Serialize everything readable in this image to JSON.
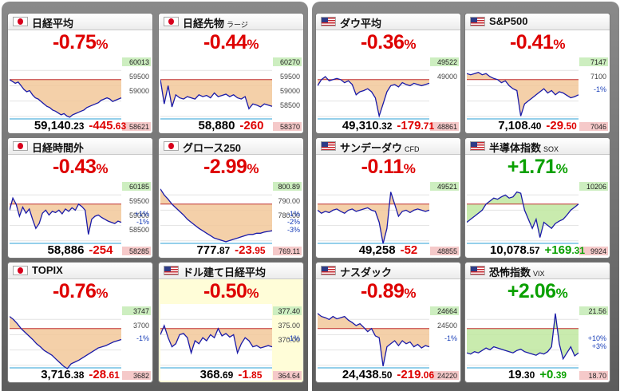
{
  "tiles": [
    {
      "name": "日経平均",
      "suffix": "",
      "flag": "jp",
      "change_pct": "-0.75",
      "pct_unit": "%",
      "price_int": "59,140",
      "price_dec": ".23",
      "change_int": "-445",
      "change_dec": ".63",
      "high": "60013",
      "low": "58621",
      "ticks": [
        "59500",
        "59000"
      ],
      "refs": [],
      "dir": "neg",
      "line": [
        0.3,
        0.33,
        0.36,
        0.34,
        0.4,
        0.46,
        0.5,
        0.48,
        0.55,
        0.6,
        0.62,
        0.66,
        0.7,
        0.74,
        0.76,
        0.8,
        0.82,
        0.85,
        0.88,
        0.86,
        0.9,
        0.92,
        0.88,
        0.86,
        0.84,
        0.82,
        0.8,
        0.76,
        0.74,
        0.72,
        0.7,
        0.68,
        0.64,
        0.62,
        0.6,
        0.62,
        0.66,
        0.64,
        0.62,
        0.6
      ]
    },
    {
      "name": "日経時間外",
      "suffix": "",
      "flag": "jp",
      "change_pct": "-0.43",
      "pct_unit": "%",
      "price_int": "58,886",
      "price_dec": "",
      "change_int": "-254",
      "change_dec": "",
      "high": "60185",
      "low": "58285",
      "ticks": [
        "59500",
        "59000",
        "58500"
      ],
      "refs": [
        "+1%",
        "-1%"
      ],
      "dir": "neg",
      "line": [
        0.4,
        0.2,
        0.3,
        0.5,
        0.35,
        0.45,
        0.38,
        0.55,
        0.7,
        0.62,
        0.45,
        0.4,
        0.48,
        0.42,
        0.44,
        0.4,
        0.46,
        0.38,
        0.42,
        0.36,
        0.4,
        0.3,
        0.34,
        0.4,
        0.8,
        0.55,
        0.5,
        0.48,
        0.52,
        0.55,
        0.58,
        0.6,
        0.62,
        0.58,
        0.6
      ]
    },
    {
      "name": "TOPIX",
      "suffix": "",
      "flag": "jp",
      "change_pct": "-0.76",
      "pct_unit": "%",
      "price_int": "3,716",
      "price_dec": ".38",
      "change_int": "-28",
      "change_dec": ".61",
      "high": "3747",
      "low": "3682",
      "ticks": [
        "3700"
      ],
      "refs": [
        "-1%"
      ],
      "dir": "neg",
      "line": [
        0.1,
        0.15,
        0.22,
        0.3,
        0.36,
        0.42,
        0.48,
        0.55,
        0.6,
        0.66,
        0.7,
        0.74,
        0.8,
        0.86,
        0.92,
        0.96,
        0.88,
        0.85,
        0.82,
        0.78,
        0.74,
        0.7,
        0.66,
        0.62,
        0.6,
        0.58,
        0.55,
        0.52,
        0.5,
        0.48
      ]
    },
    {
      "name": "日経先物",
      "suffix": "ラージ",
      "flag": "jp",
      "change_pct": "-0.44",
      "pct_unit": "%",
      "price_int": "58,880",
      "price_dec": "",
      "change_int": "-260",
      "change_dec": "",
      "high": "60270",
      "low": "58370",
      "ticks": [
        "59500",
        "59000",
        "58500"
      ],
      "refs": [],
      "dir": "neg",
      "line": [
        0.3,
        0.7,
        0.4,
        0.75,
        0.55,
        0.6,
        0.62,
        0.58,
        0.6,
        0.62,
        0.55,
        0.58,
        0.56,
        0.6,
        0.52,
        0.58,
        0.56,
        0.54,
        0.58,
        0.55,
        0.6,
        0.62,
        0.58,
        0.78,
        0.7,
        0.72,
        0.75,
        0.7,
        0.72,
        0.74
      ]
    },
    {
      "name": "グロース250",
      "suffix": "",
      "flag": "jp",
      "change_pct": "-2.99",
      "pct_unit": "%",
      "price_int": "777",
      "price_dec": ".87",
      "change_int": "-23",
      "change_dec": ".95",
      "high": "800.89",
      "low": "769.11",
      "ticks": [
        "790.00",
        "780.00"
      ],
      "refs": [
        "-1%",
        "-2%",
        "-3%"
      ],
      "dir": "neg",
      "line": [
        0.05,
        0.15,
        0.22,
        0.3,
        0.36,
        0.42,
        0.48,
        0.55,
        0.6,
        0.65,
        0.7,
        0.74,
        0.78,
        0.82,
        0.86,
        0.88,
        0.9,
        0.92,
        0.9,
        0.88,
        0.86,
        0.84,
        0.82,
        0.8,
        0.8,
        0.78,
        0.78,
        0.76,
        0.75,
        0.74
      ]
    },
    {
      "name": "ドル建て日経平均",
      "suffix": "",
      "flag": "us",
      "change_pct": "-0.50",
      "pct_unit": "%",
      "price_int": "368",
      "price_dec": ".69",
      "change_int": "-1",
      "change_dec": ".85",
      "high": "377.40",
      "low": "364.64",
      "ticks": [
        "375.00",
        "370.00"
      ],
      "refs": [
        "-1%"
      ],
      "dir": "neg",
      "highlight": true,
      "line": [
        0.4,
        0.25,
        0.45,
        0.6,
        0.55,
        0.4,
        0.38,
        0.45,
        0.7,
        0.5,
        0.55,
        0.45,
        0.5,
        0.4,
        0.45,
        0.3,
        0.42,
        0.38,
        0.44,
        0.4,
        0.7,
        0.55,
        0.45,
        0.5,
        0.6,
        0.58,
        0.62,
        0.6,
        0.58,
        0.6
      ]
    },
    {
      "name": "ダウ平均",
      "suffix": "",
      "flag": "us",
      "change_pct": "-0.36",
      "pct_unit": "%",
      "price_int": "49,310",
      "price_dec": ".32",
      "change_int": "-179",
      "change_dec": ".71",
      "high": "49522",
      "low": "48861",
      "ticks": [
        "49000"
      ],
      "refs": [],
      "dir": "neg",
      "line": [
        0.4,
        0.3,
        0.25,
        0.32,
        0.3,
        0.28,
        0.3,
        0.35,
        0.32,
        0.38,
        0.55,
        0.5,
        0.48,
        0.45,
        0.5,
        0.6,
        0.9,
        0.7,
        0.5,
        0.4,
        0.38,
        0.42,
        0.35,
        0.38,
        0.4,
        0.36,
        0.38,
        0.4,
        0.38,
        0.36
      ]
    },
    {
      "name": "サンデーダウ",
      "suffix": "CFD",
      "flag": "us",
      "change_pct": "-0.11",
      "pct_unit": "%",
      "price_int": "49,258",
      "price_dec": "",
      "change_int": "-52",
      "change_dec": "",
      "high": "49521",
      "low": "48855",
      "ticks": [],
      "refs": [],
      "dir": "neg",
      "line": [
        0.4,
        0.45,
        0.42,
        0.44,
        0.4,
        0.38,
        0.42,
        0.45,
        0.4,
        0.38,
        0.42,
        0.4,
        0.38,
        0.36,
        0.4,
        0.42,
        0.6,
        0.95,
        0.7,
        0.1,
        0.3,
        0.5,
        0.42,
        0.4,
        0.44,
        0.4,
        0.38,
        0.4,
        0.42,
        0.4
      ]
    },
    {
      "name": "ナスダック",
      "suffix": "",
      "flag": "us",
      "change_pct": "-0.89",
      "pct_unit": "%",
      "price_int": "24,438",
      "price_dec": ".50",
      "change_int": "-219",
      "change_dec": ".06",
      "high": "24664",
      "low": "24220",
      "ticks": [
        "24500"
      ],
      "refs": [
        "-1%"
      ],
      "dir": "neg",
      "line": [
        0.05,
        0.1,
        0.12,
        0.15,
        0.1,
        0.14,
        0.12,
        0.1,
        0.16,
        0.2,
        0.25,
        0.22,
        0.28,
        0.35,
        0.3,
        0.42,
        0.45,
        0.92,
        0.6,
        0.55,
        0.5,
        0.58,
        0.5,
        0.55,
        0.52,
        0.6,
        0.56,
        0.62,
        0.58,
        0.6
      ]
    },
    {
      "name": "S&P500",
      "suffix": "",
      "flag": "us",
      "change_pct": "-0.41",
      "pct_unit": "%",
      "price_int": "7,108",
      "price_dec": ".40",
      "change_int": "-29",
      "change_dec": ".50",
      "high": "7147",
      "low": "7046",
      "ticks": [
        "7100"
      ],
      "refs": [
        "-1%"
      ],
      "dir": "neg",
      "line": [
        0.2,
        0.22,
        0.2,
        0.18,
        0.22,
        0.2,
        0.25,
        0.28,
        0.3,
        0.35,
        0.32,
        0.4,
        0.45,
        0.48,
        0.9,
        0.7,
        0.65,
        0.6,
        0.55,
        0.5,
        0.45,
        0.52,
        0.48,
        0.55,
        0.5,
        0.52,
        0.56,
        0.6,
        0.58,
        0.55
      ]
    },
    {
      "name": "半導体指数",
      "suffix": "SOX",
      "flag": "us",
      "change_pct": "+1.71",
      "pct_unit": "%",
      "price_int": "10,078",
      "price_dec": ".57",
      "change_int": "+169",
      "change_dec": ".31",
      "high": "10206",
      "low": "9924",
      "ticks": [],
      "refs": [],
      "dir": "pos",
      "line": [
        0.6,
        0.55,
        0.5,
        0.45,
        0.4,
        0.3,
        0.25,
        0.2,
        0.22,
        0.18,
        0.15,
        0.2,
        0.18,
        0.1,
        0.12,
        0.4,
        0.55,
        0.7,
        0.55,
        0.85,
        0.6,
        0.65,
        0.7,
        0.62,
        0.58,
        0.55,
        0.48,
        0.4,
        0.35,
        0.3
      ]
    },
    {
      "name": "恐怖指数",
      "suffix": "VIX",
      "flag": "us",
      "change_pct": "+2.06",
      "pct_unit": "%",
      "price_int": "19",
      "price_dec": ".30",
      "change_int": "+0",
      "change_dec": ".39",
      "high": "21.56",
      "low": "18.70",
      "ticks": [],
      "refs": [
        "+10%",
        "+3%"
      ],
      "dir": "pos",
      "line": [
        0.7,
        0.72,
        0.68,
        0.7,
        0.66,
        0.62,
        0.65,
        0.6,
        0.62,
        0.64,
        0.66,
        0.68,
        0.7,
        0.66,
        0.64,
        0.68,
        0.7,
        0.72,
        0.74,
        0.7,
        0.72,
        0.68,
        0.6,
        0.05,
        0.55,
        0.8,
        0.7,
        0.6,
        0.75,
        0.7
      ]
    }
  ]
}
